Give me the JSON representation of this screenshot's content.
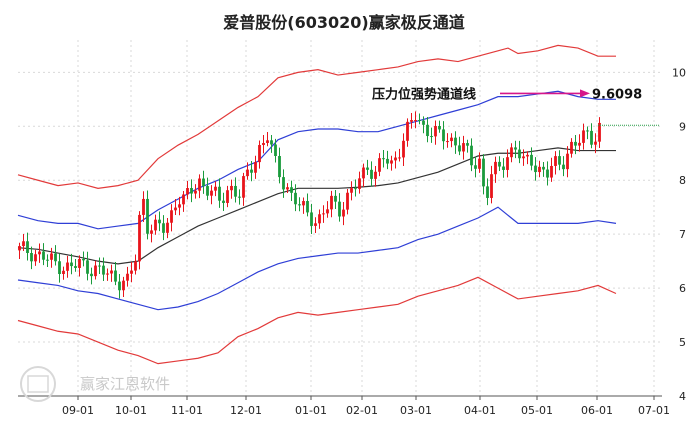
{
  "chart_data": {
    "type": "candlestick",
    "title": "爱普股份(603020)赢家极反通道",
    "x_ticks": [
      "09-01",
      "10-01",
      "11-01",
      "12-01",
      "01-01",
      "02-01",
      "03-01",
      "04-01",
      "05-01",
      "06-01",
      "07-01"
    ],
    "y_ticks": [
      4,
      5,
      6,
      7,
      8,
      9,
      10
    ],
    "ylim": [
      4,
      10.6
    ],
    "grid": true,
    "annotation": {
      "label": "压力位强势通道线",
      "value": "9.6098",
      "y": 9.6098
    },
    "colors": {
      "up": "#e8141b",
      "down": "#1a9b3c",
      "outer_band": "#e23a3a",
      "inner_band": "#2f3fd6",
      "midline": "#333333",
      "arrow": "#d6168a",
      "ref_line": "#2aa14a"
    },
    "series": {
      "outer_upper": [
        [
          0,
          8.1
        ],
        [
          20,
          8.0
        ],
        [
          40,
          7.9
        ],
        [
          60,
          7.95
        ],
        [
          80,
          7.85
        ],
        [
          100,
          7.9
        ],
        [
          120,
          8.0
        ],
        [
          140,
          8.4
        ],
        [
          160,
          8.65
        ],
        [
          180,
          8.85
        ],
        [
          200,
          9.1
        ],
        [
          220,
          9.35
        ],
        [
          240,
          9.55
        ],
        [
          260,
          9.9
        ],
        [
          280,
          10.0
        ],
        [
          300,
          10.05
        ],
        [
          320,
          9.95
        ],
        [
          340,
          10.0
        ],
        [
          360,
          10.05
        ],
        [
          380,
          10.1
        ],
        [
          400,
          10.2
        ],
        [
          420,
          10.25
        ],
        [
          440,
          10.2
        ],
        [
          460,
          10.3
        ],
        [
          480,
          10.4
        ],
        [
          490,
          10.45
        ],
        [
          500,
          10.35
        ],
        [
          520,
          10.4
        ],
        [
          540,
          10.5
        ],
        [
          560,
          10.45
        ],
        [
          580,
          10.3
        ],
        [
          598,
          10.3
        ]
      ],
      "inner_upper": [
        [
          0,
          7.35
        ],
        [
          20,
          7.25
        ],
        [
          40,
          7.2
        ],
        [
          60,
          7.2
        ],
        [
          80,
          7.1
        ],
        [
          100,
          7.15
        ],
        [
          120,
          7.2
        ],
        [
          140,
          7.45
        ],
        [
          160,
          7.65
        ],
        [
          180,
          7.85
        ],
        [
          200,
          8.0
        ],
        [
          220,
          8.2
        ],
        [
          240,
          8.35
        ],
        [
          260,
          8.75
        ],
        [
          280,
          8.9
        ],
        [
          300,
          8.95
        ],
        [
          320,
          8.95
        ],
        [
          340,
          8.9
        ],
        [
          360,
          8.9
        ],
        [
          380,
          9.0
        ],
        [
          400,
          9.1
        ],
        [
          420,
          9.2
        ],
        [
          440,
          9.3
        ],
        [
          460,
          9.4
        ],
        [
          480,
          9.55
        ],
        [
          500,
          9.55
        ],
        [
          520,
          9.6
        ],
        [
          540,
          9.65
        ],
        [
          560,
          9.55
        ],
        [
          580,
          9.5
        ],
        [
          598,
          9.5
        ]
      ],
      "midline": [
        [
          0,
          6.75
        ],
        [
          20,
          6.72
        ],
        [
          40,
          6.65
        ],
        [
          60,
          6.58
        ],
        [
          80,
          6.5
        ],
        [
          100,
          6.45
        ],
        [
          120,
          6.5
        ],
        [
          140,
          6.75
        ],
        [
          160,
          6.95
        ],
        [
          180,
          7.15
        ],
        [
          200,
          7.3
        ],
        [
          220,
          7.45
        ],
        [
          240,
          7.6
        ],
        [
          260,
          7.75
        ],
        [
          280,
          7.85
        ],
        [
          300,
          7.85
        ],
        [
          320,
          7.85
        ],
        [
          340,
          7.87
        ],
        [
          360,
          7.9
        ],
        [
          380,
          7.95
        ],
        [
          400,
          8.05
        ],
        [
          420,
          8.15
        ],
        [
          440,
          8.3
        ],
        [
          460,
          8.45
        ],
        [
          480,
          8.5
        ],
        [
          500,
          8.5
        ],
        [
          520,
          8.55
        ],
        [
          540,
          8.6
        ],
        [
          560,
          8.55
        ],
        [
          580,
          8.55
        ],
        [
          598,
          8.55
        ]
      ],
      "inner_lower": [
        [
          0,
          6.15
        ],
        [
          20,
          6.1
        ],
        [
          40,
          6.05
        ],
        [
          60,
          5.95
        ],
        [
          80,
          5.9
        ],
        [
          100,
          5.8
        ],
        [
          120,
          5.7
        ],
        [
          140,
          5.6
        ],
        [
          160,
          5.65
        ],
        [
          180,
          5.75
        ],
        [
          200,
          5.9
        ],
        [
          220,
          6.1
        ],
        [
          240,
          6.3
        ],
        [
          260,
          6.45
        ],
        [
          280,
          6.55
        ],
        [
          300,
          6.6
        ],
        [
          320,
          6.65
        ],
        [
          340,
          6.65
        ],
        [
          360,
          6.7
        ],
        [
          380,
          6.75
        ],
        [
          400,
          6.9
        ],
        [
          420,
          7.0
        ],
        [
          440,
          7.15
        ],
        [
          460,
          7.3
        ],
        [
          480,
          7.5
        ],
        [
          500,
          7.2
        ],
        [
          520,
          7.2
        ],
        [
          540,
          7.2
        ],
        [
          560,
          7.2
        ],
        [
          580,
          7.25
        ],
        [
          598,
          7.2
        ]
      ],
      "outer_lower": [
        [
          0,
          5.4
        ],
        [
          20,
          5.3
        ],
        [
          40,
          5.2
        ],
        [
          60,
          5.15
        ],
        [
          80,
          5.0
        ],
        [
          100,
          4.85
        ],
        [
          120,
          4.75
        ],
        [
          140,
          4.6
        ],
        [
          160,
          4.65
        ],
        [
          180,
          4.7
        ],
        [
          200,
          4.8
        ],
        [
          220,
          5.1
        ],
        [
          240,
          5.25
        ],
        [
          260,
          5.45
        ],
        [
          280,
          5.55
        ],
        [
          300,
          5.5
        ],
        [
          320,
          5.55
        ],
        [
          340,
          5.6
        ],
        [
          360,
          5.65
        ],
        [
          380,
          5.7
        ],
        [
          400,
          5.85
        ],
        [
          420,
          5.95
        ],
        [
          440,
          6.05
        ],
        [
          460,
          6.2
        ],
        [
          480,
          6.0
        ],
        [
          500,
          5.8
        ],
        [
          520,
          5.85
        ],
        [
          540,
          5.9
        ],
        [
          560,
          5.95
        ],
        [
          580,
          6.05
        ],
        [
          598,
          5.9
        ]
      ]
    }
  },
  "watermark": "赢家江恩软件"
}
